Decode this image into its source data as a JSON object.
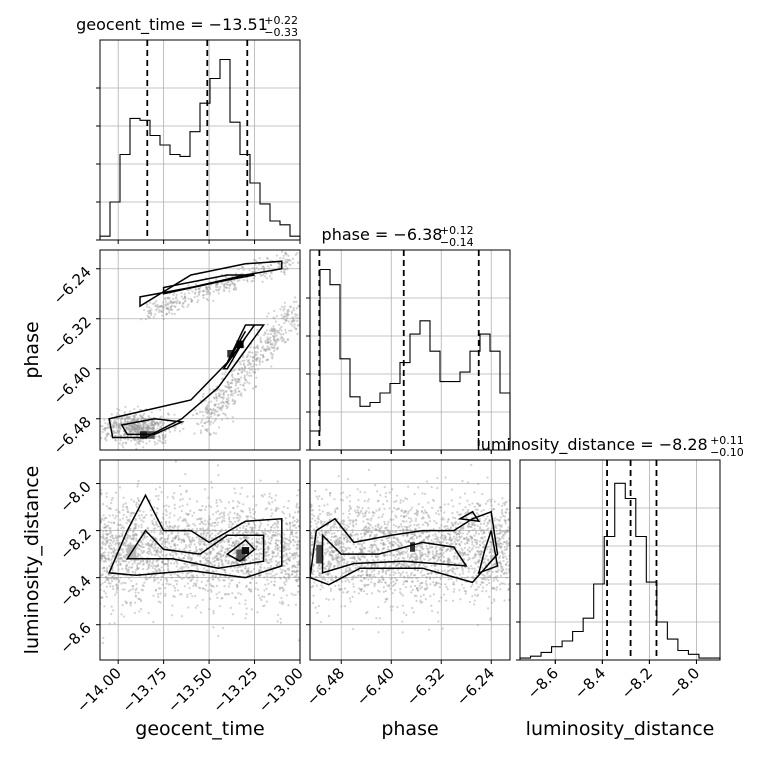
{
  "chart_data": {
    "type": "corner",
    "parameters": [
      {
        "name": "geocent_time",
        "median": -13.51,
        "plus": "0.22",
        "minus": "0.33",
        "range": [
          -14.1,
          -13.0
        ],
        "ticks": [
          -14.0,
          -13.75,
          -13.5,
          -13.25,
          -13.0
        ],
        "tick_labels": [
          "−14.00",
          "−13.75",
          "−13.50",
          "−13.25",
          "−13.00"
        ],
        "quantiles": [
          -13.84,
          -13.51,
          -13.29
        ]
      },
      {
        "name": "phase",
        "median": -6.38,
        "plus": "0.12",
        "minus": "0.14",
        "range": [
          -6.53,
          -6.21
        ],
        "ticks": [
          -6.48,
          -6.4,
          -6.32,
          -6.24
        ],
        "tick_labels": [
          "−6.48",
          "−6.40",
          "−6.32",
          "−6.24"
        ],
        "quantiles": [
          -6.515,
          -6.38,
          -6.26
        ]
      },
      {
        "name": "luminosity_distance",
        "median": -8.28,
        "plus": "0.11",
        "minus": "0.10",
        "range": [
          -8.75,
          -7.9
        ],
        "ticks": [
          -8.6,
          -8.4,
          -8.2,
          -8.0
        ],
        "tick_labels": [
          "−8.6",
          "−8.4",
          "−8.2",
          "−8.0"
        ],
        "quantiles": [
          -8.38,
          -8.28,
          -8.17
        ]
      }
    ],
    "titles": [
      {
        "text": "geocent_time = −13.51",
        "sup": "+0.22",
        "sub": "−0.33"
      },
      {
        "text": "phase = −6.38",
        "sup": "+0.12",
        "sub": "−0.14"
      },
      {
        "text": "luminosity_distance = −8.28",
        "sup": "+0.11",
        "sub": "−0.10"
      }
    ],
    "xlabels": [
      "geocent_time",
      "phase",
      "luminosity_distance"
    ],
    "ylabels": [
      "phase",
      "luminosity_distance"
    ],
    "histograms": [
      {
        "param": "geocent_time",
        "counts": [
          0.02,
          0.2,
          0.45,
          0.64,
          0.63,
          0.55,
          0.5,
          0.45,
          0.44,
          0.57,
          0.72,
          0.85,
          0.95,
          0.62,
          0.45,
          0.3,
          0.19,
          0.1,
          0.08,
          0.02
        ]
      },
      {
        "param": "phase",
        "counts": [
          0.1,
          0.95,
          0.87,
          0.48,
          0.28,
          0.23,
          0.25,
          0.3,
          0.35,
          0.46,
          0.61,
          0.68,
          0.52,
          0.36,
          0.36,
          0.41,
          0.52,
          0.61,
          0.52,
          0.3
        ]
      },
      {
        "param": "luminosity_distance",
        "counts": [
          0.01,
          0.02,
          0.04,
          0.07,
          0.1,
          0.15,
          0.22,
          0.4,
          0.65,
          0.93,
          0.85,
          0.65,
          0.41,
          0.2,
          0.11,
          0.05,
          0.03,
          0.01,
          0.01
        ]
      }
    ],
    "grid": true
  }
}
